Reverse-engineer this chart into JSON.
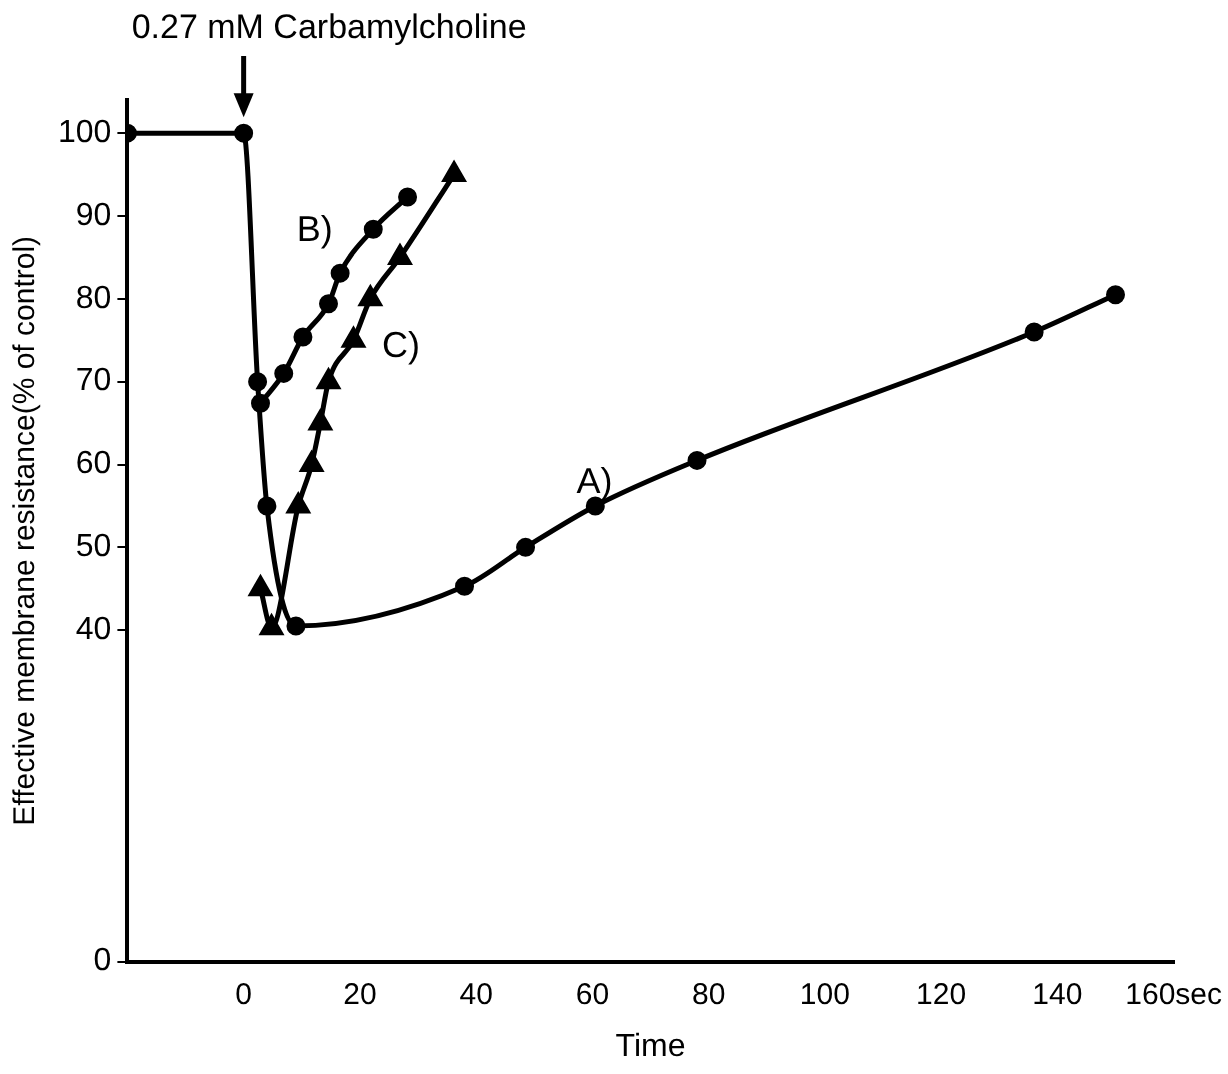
{
  "chart_data": {
    "type": "line",
    "xlabel": "Time",
    "ylabel": "Effective membrane resistance(% of control)",
    "xlim": [
      -20,
      160
    ],
    "xticks": [
      0,
      20,
      40,
      60,
      80,
      100,
      120,
      140,
      {
        "value": 160,
        "label": "160sec"
      }
    ],
    "ylim": [
      0,
      104
    ],
    "yticks": [
      0,
      40,
      50,
      60,
      70,
      80,
      90,
      100
    ],
    "grid": false,
    "legend": false,
    "line_style": "solid",
    "annotations": [
      {
        "text": "0.27 mM Carbamylcholine",
        "x": 0,
        "y": 100
      }
    ],
    "series": [
      {
        "name": "A)",
        "color": "#000000",
        "marker": "circle",
        "x": [
          -20,
          0,
          2.4,
          4,
          9,
          38,
          48.5,
          60.5,
          78,
          136,
          150
        ],
        "values": [
          100,
          100,
          70,
          55,
          40.5,
          45.3,
          50,
          55,
          60.5,
          76,
          80.5
        ]
      },
      {
        "name": "B)",
        "color": "#000000",
        "marker": "circle",
        "x": [
          2.9,
          6.9,
          10.2,
          14.6,
          16.6,
          22.3,
          28.2
        ],
        "values": [
          67.4,
          71,
          75.4,
          79.4,
          83.1,
          88.4,
          92.3
        ]
      },
      {
        "name": "C)",
        "color": "#000000",
        "marker": "triangle",
        "x": [
          2.9,
          4.8,
          9.4,
          11.7,
          13.2,
          14.6,
          18.9,
          21.8,
          26.9,
          36.2
        ],
        "values": [
          45,
          40.3,
          55,
          60,
          65,
          70,
          75,
          80,
          85,
          95
        ]
      }
    ]
  }
}
